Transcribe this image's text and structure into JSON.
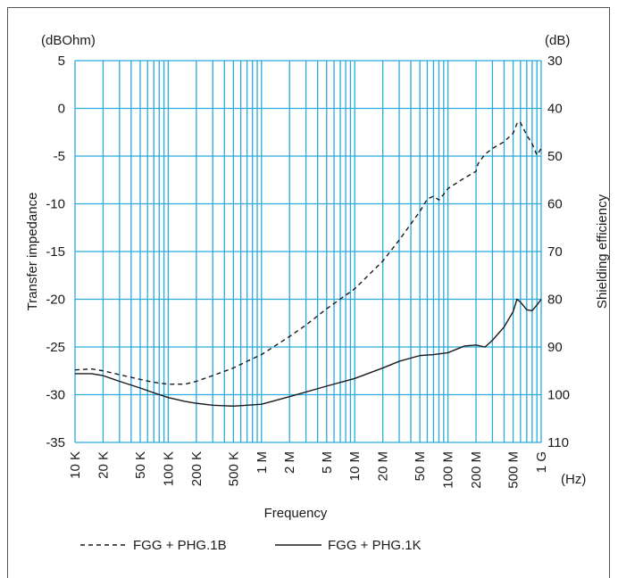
{
  "chart_data": {
    "type": "line",
    "x_scale": "log",
    "x_unit_label": "(Hz)",
    "x_ticks": [
      {
        "label": "10 K",
        "value": 10000
      },
      {
        "label": "20 K",
        "value": 20000
      },
      {
        "label": "50 K",
        "value": 50000
      },
      {
        "label": "100 K",
        "value": 100000
      },
      {
        "label": "200 K",
        "value": 200000
      },
      {
        "label": "500 K",
        "value": 500000
      },
      {
        "label": "1 M",
        "value": 1000000
      },
      {
        "label": "2 M",
        "value": 2000000
      },
      {
        "label": "5 M",
        "value": 5000000
      },
      {
        "label": "10 M",
        "value": 10000000
      },
      {
        "label": "20 M",
        "value": 20000000
      },
      {
        "label": "50 M",
        "value": 50000000
      },
      {
        "label": "100 M",
        "value": 100000000
      },
      {
        "label": "200 M",
        "value": 200000000
      },
      {
        "label": "500 M",
        "value": 500000000
      },
      {
        "label": "1 G",
        "value": 1000000000
      }
    ],
    "xlim": [
      10000,
      1000000000
    ],
    "xlabel": "Frequency",
    "ylabel_left": "Transfer impedance",
    "ylabel_left_unit": "(dBOhm)",
    "ylim_left": [
      -35,
      5
    ],
    "y_ticks_left": [
      5,
      0,
      -5,
      -10,
      -15,
      -20,
      -25,
      -30,
      -35
    ],
    "ylabel_right": "Shielding efficiency",
    "ylabel_right_unit": "(dB)",
    "ylim_right": [
      30,
      110
    ],
    "y_ticks_right": [
      30,
      40,
      50,
      60,
      70,
      80,
      90,
      100,
      110
    ],
    "grid": true,
    "grid_color": "#29a9dc",
    "legend_position": "bottom",
    "series": [
      {
        "name": "FGG + PHG.1B",
        "style": "dashed",
        "color": "#1a1a1a",
        "points": [
          [
            10000,
            -27.4
          ],
          [
            15000,
            -27.3
          ],
          [
            20000,
            -27.5
          ],
          [
            30000,
            -27.9
          ],
          [
            50000,
            -28.4
          ],
          [
            70000,
            -28.7
          ],
          [
            100000,
            -28.9
          ],
          [
            150000,
            -28.9
          ],
          [
            200000,
            -28.6
          ],
          [
            300000,
            -28.0
          ],
          [
            500000,
            -27.2
          ],
          [
            700000,
            -26.5
          ],
          [
            1000000,
            -25.8
          ],
          [
            2000000,
            -23.9
          ],
          [
            3000000,
            -22.7
          ],
          [
            5000000,
            -21.0
          ],
          [
            10000000,
            -18.9
          ],
          [
            20000000,
            -16.0
          ],
          [
            30000000,
            -13.8
          ],
          [
            50000000,
            -10.8
          ],
          [
            60000000,
            -9.5
          ],
          [
            70000000,
            -9.2
          ],
          [
            80000000,
            -9.6
          ],
          [
            90000000,
            -9.0
          ],
          [
            100000000,
            -8.4
          ],
          [
            150000000,
            -7.3
          ],
          [
            200000000,
            -6.6
          ],
          [
            210000000,
            -5.8
          ],
          [
            250000000,
            -4.8
          ],
          [
            300000000,
            -4.2
          ],
          [
            400000000,
            -3.5
          ],
          [
            500000000,
            -2.6
          ],
          [
            560000000,
            -1.4
          ],
          [
            600000000,
            -1.5
          ],
          [
            700000000,
            -2.8
          ],
          [
            800000000,
            -3.7
          ],
          [
            900000000,
            -4.9
          ],
          [
            1000000000,
            -4.2
          ]
        ]
      },
      {
        "name": "FGG + PHG.1K",
        "style": "solid",
        "color": "#1a1a1a",
        "points": [
          [
            10000,
            -27.8
          ],
          [
            15000,
            -27.8
          ],
          [
            20000,
            -28.0
          ],
          [
            30000,
            -28.6
          ],
          [
            50000,
            -29.3
          ],
          [
            70000,
            -29.8
          ],
          [
            100000,
            -30.3
          ],
          [
            150000,
            -30.7
          ],
          [
            200000,
            -30.9
          ],
          [
            300000,
            -31.1
          ],
          [
            500000,
            -31.2
          ],
          [
            700000,
            -31.1
          ],
          [
            1000000,
            -31.0
          ],
          [
            2000000,
            -30.2
          ],
          [
            5000000,
            -29.1
          ],
          [
            10000000,
            -28.3
          ],
          [
            20000000,
            -27.2
          ],
          [
            30000000,
            -26.5
          ],
          [
            50000000,
            -25.9
          ],
          [
            70000000,
            -25.8
          ],
          [
            100000000,
            -25.6
          ],
          [
            150000000,
            -24.9
          ],
          [
            200000000,
            -24.8
          ],
          [
            250000000,
            -25.0
          ],
          [
            300000000,
            -24.3
          ],
          [
            400000000,
            -22.9
          ],
          [
            500000000,
            -21.3
          ],
          [
            550000000,
            -20.0
          ],
          [
            600000000,
            -20.3
          ],
          [
            700000000,
            -21.1
          ],
          [
            800000000,
            -21.2
          ],
          [
            900000000,
            -20.6
          ],
          [
            1000000000,
            -20.0
          ]
        ]
      }
    ]
  }
}
